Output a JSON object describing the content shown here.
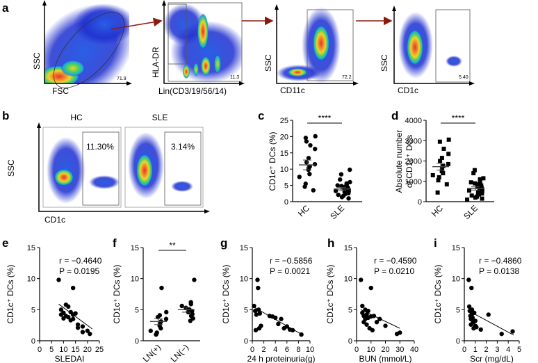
{
  "colors": {
    "flow_hot": "#e8342a",
    "flow_warm": "#f2d22e",
    "flow_mid": "#4ed35a",
    "flow_cool": "#1aa7e0",
    "flow_cold": "#1e2fd0",
    "arrow": "#8b1a0e"
  },
  "panel_a": {
    "label": "a",
    "plots": [
      {
        "xlabel": "FSC",
        "ylabel": "SSC",
        "gate_value": "71.9"
      },
      {
        "xlabel": "Lin(CD3/19/56/14)",
        "ylabel": "HLA-DR",
        "gate_value": "11.3"
      },
      {
        "xlabel": "CD11c",
        "ylabel": "SSC",
        "gate_value": "72.2"
      },
      {
        "xlabel": "CD1c",
        "ylabel": "SSC",
        "gate_value": "5.40"
      }
    ]
  },
  "panel_b": {
    "label": "b",
    "xlabel": "CD1c",
    "ylabel": "SSC",
    "plots": [
      {
        "title": "HC",
        "percent": "11.30%"
      },
      {
        "title": "SLE",
        "percent": "3.14%"
      }
    ]
  },
  "chart_data": [
    {
      "panel": "c",
      "type": "scatter",
      "ylabel": "CD1c⁺ DCs (%)",
      "ylim": [
        0,
        25
      ],
      "yticks": [
        0,
        5,
        10,
        15,
        20,
        25
      ],
      "categories": [
        "HC",
        "SLE"
      ],
      "significance": "****",
      "series": [
        {
          "name": "HC",
          "mean": 11.3,
          "sem": 1.5,
          "values": [
            19.6,
            20.1,
            18.5,
            17.3,
            16.2,
            13.4,
            12.1,
            11.5,
            10.8,
            10.3,
            9.8,
            8.5,
            7.6,
            5.5,
            4.6,
            3.5
          ]
        },
        {
          "name": "SLE",
          "mean": 3.9,
          "sem": 0.5,
          "values": [
            9.8,
            8.4,
            6.8,
            6.0,
            5.6,
            5.2,
            5.0,
            4.8,
            4.6,
            4.4,
            4.2,
            4.0,
            3.9,
            3.7,
            3.5,
            3.3,
            3.1,
            3.0,
            2.8,
            2.6,
            2.4,
            2.1,
            1.8,
            1.4,
            1.0
          ]
        }
      ]
    },
    {
      "panel": "d",
      "type": "scatter",
      "ylabel_line1": "Absolute number",
      "ylabel_line2": "of CD1c⁺ DCs",
      "ylim": [
        0,
        4000
      ],
      "yticks": [
        0,
        1000,
        2000,
        3000,
        4000
      ],
      "categories": [
        "HC",
        "SLE"
      ],
      "significance": "****",
      "series": [
        {
          "name": "HC",
          "mean": 1720,
          "sem": 170,
          "values": [
            3050,
            2950,
            2600,
            2350,
            2150,
            2000,
            1850,
            1750,
            1650,
            1500,
            1400,
            1300,
            1200,
            1050,
            850,
            450
          ]
        },
        {
          "name": "SLE",
          "mean": 650,
          "sem": 80,
          "values": [
            1550,
            1400,
            1150,
            1100,
            1000,
            950,
            900,
            850,
            800,
            750,
            700,
            650,
            600,
            580,
            550,
            500,
            450,
            420,
            400,
            350,
            300,
            250,
            200,
            150,
            100
          ]
        }
      ]
    },
    {
      "panel": "e",
      "type": "scatter",
      "xlabel": "SLEDAI",
      "ylabel": "CD1c⁺ DCs (%)",
      "xlim": [
        0,
        25
      ],
      "xticks": [
        0,
        5,
        10,
        15,
        20,
        25
      ],
      "ylim": [
        0,
        15
      ],
      "yticks": [
        0,
        5,
        10,
        15
      ],
      "r": "r = −0.4640",
      "p": "P = 0.0195",
      "fit": [
        [
          8,
          5.9
        ],
        [
          22,
          1.9
        ]
      ],
      "points": [
        [
          8,
          9.8
        ],
        [
          9,
          5.0
        ],
        [
          9,
          4.2
        ],
        [
          10,
          4.5
        ],
        [
          10,
          3.6
        ],
        [
          11,
          5.8
        ],
        [
          11,
          4.0
        ],
        [
          12,
          5.5
        ],
        [
          12,
          3.8
        ],
        [
          13,
          4.6
        ],
        [
          13,
          3.3
        ],
        [
          14,
          8.5
        ],
        [
          14,
          4.2
        ],
        [
          14,
          3.5
        ],
        [
          15,
          4.4
        ],
        [
          16,
          2.6
        ],
        [
          16,
          2.1
        ],
        [
          18,
          2.3
        ],
        [
          18,
          1.4
        ],
        [
          20,
          1.6
        ],
        [
          21,
          1.1
        ]
      ]
    },
    {
      "panel": "f",
      "type": "scatter",
      "ylabel": "CD1c⁺ DCs (%)",
      "ylim": [
        0,
        15
      ],
      "yticks": [
        0,
        5,
        10,
        15
      ],
      "categories": [
        "LN(+)",
        "LN(−)"
      ],
      "significance": "**",
      "series": [
        {
          "name": "LN(+)",
          "mean": 3.1,
          "sem": 0.5,
          "values": [
            8.5,
            4.6,
            4.1,
            3.8,
            3.5,
            3.1,
            2.8,
            2.4,
            2.0,
            1.6,
            1.3,
            1.0
          ]
        },
        {
          "name": "LN(−)",
          "mean": 5.0,
          "sem": 0.4,
          "values": [
            9.8,
            6.2,
            5.9,
            5.6,
            5.3,
            5.0,
            4.8,
            4.6,
            4.3,
            4.0,
            3.6,
            3.2
          ]
        }
      ]
    },
    {
      "panel": "g",
      "type": "scatter",
      "xlabel": "24 h proteinuria(g)",
      "ylabel": "CD1c⁺ DCs (%)",
      "xlim": [
        0,
        10
      ],
      "xticks": [
        0,
        2,
        4,
        6,
        8,
        10
      ],
      "ylim": [
        0,
        15
      ],
      "yticks": [
        0,
        5,
        10,
        15
      ],
      "r": "r = −0.5856",
      "p": "P = 0.0021",
      "fit": [
        [
          0.1,
          5.5
        ],
        [
          8.6,
          1.0
        ]
      ],
      "points": [
        [
          0.3,
          5.6
        ],
        [
          0.5,
          4.8
        ],
        [
          0.7,
          4.2
        ],
        [
          0.9,
          9.8
        ],
        [
          1.0,
          8.5
        ],
        [
          1.1,
          5.0
        ],
        [
          1.3,
          4.4
        ],
        [
          1.2,
          2.0
        ],
        [
          0.6,
          1.7
        ],
        [
          1.5,
          2.4
        ],
        [
          3.0,
          4.0
        ],
        [
          3.5,
          3.9
        ],
        [
          4.0,
          3.7
        ],
        [
          4.5,
          2.7
        ],
        [
          5.0,
          3.5
        ],
        [
          5.5,
          2.0
        ],
        [
          6.0,
          2.3
        ],
        [
          6.5,
          1.8
        ],
        [
          7.0,
          1.7
        ],
        [
          8.5,
          1.0
        ]
      ]
    },
    {
      "panel": "h",
      "type": "scatter",
      "xlabel": "BUN (mmol/L)",
      "ylabel": "CD1c⁺ DCs (%)",
      "xlim": [
        0,
        40
      ],
      "xticks": [
        0,
        10,
        20,
        30,
        40
      ],
      "ylim": [
        0,
        15
      ],
      "yticks": [
        0,
        5,
        10,
        15
      ],
      "r": "r = −0.4590",
      "p": "P = 0.0210",
      "fit": [
        [
          3,
          5.0
        ],
        [
          30,
          2.0
        ]
      ],
      "points": [
        [
          3,
          9.8
        ],
        [
          4,
          5.6
        ],
        [
          4,
          4.5
        ],
        [
          5,
          4.0
        ],
        [
          5,
          3.0
        ],
        [
          6,
          5.0
        ],
        [
          6,
          3.5
        ],
        [
          7,
          4.2
        ],
        [
          7,
          2.6
        ],
        [
          8,
          4.8
        ],
        [
          8,
          3.7
        ],
        [
          9,
          2.0
        ],
        [
          10,
          8.5
        ],
        [
          10,
          3.9
        ],
        [
          11,
          1.7
        ],
        [
          12,
          4.0
        ],
        [
          14,
          3.0
        ],
        [
          16,
          3.5
        ],
        [
          20,
          2.4
        ],
        [
          28,
          1.1
        ],
        [
          30,
          1.3
        ]
      ]
    },
    {
      "panel": "i",
      "type": "scatter",
      "xlabel": "Scr (mg/dL)",
      "ylabel": "CD1c⁺ DCs (%)",
      "xlim": [
        0,
        5
      ],
      "xticks": [
        0,
        1,
        2,
        3,
        4,
        5
      ],
      "ylim": [
        0,
        15
      ],
      "yticks": [
        0,
        5,
        10,
        15
      ],
      "r": "r = −0.4860",
      "p": "P = 0.0138",
      "fit": [
        [
          0.3,
          4.9
        ],
        [
          4.5,
          0.9
        ]
      ],
      "points": [
        [
          0.4,
          9.8
        ],
        [
          0.45,
          5.5
        ],
        [
          0.5,
          4.8
        ],
        [
          0.55,
          4.0
        ],
        [
          0.6,
          3.5
        ],
        [
          0.6,
          2.6
        ],
        [
          0.65,
          8.5
        ],
        [
          0.7,
          5.0
        ],
        [
          0.7,
          4.3
        ],
        [
          0.75,
          3.7
        ],
        [
          0.8,
          3.0
        ],
        [
          0.85,
          2.0
        ],
        [
          0.9,
          4.5
        ],
        [
          1.0,
          3.2
        ],
        [
          1.0,
          2.4
        ],
        [
          1.1,
          2.2
        ],
        [
          1.5,
          1.8
        ],
        [
          2.2,
          4.2
        ],
        [
          3.4,
          1.1
        ],
        [
          4.4,
          1.5
        ]
      ]
    }
  ],
  "panel_labels": {
    "c": "c",
    "d": "d",
    "e": "e",
    "f": "f",
    "g": "g",
    "h": "h",
    "i": "i"
  }
}
